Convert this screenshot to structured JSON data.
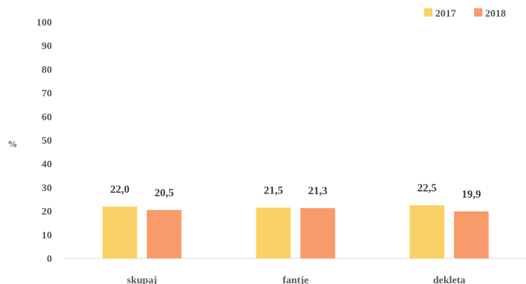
{
  "chart_data": {
    "type": "bar",
    "categories": [
      "skupaj",
      "fantje",
      "dekleta"
    ],
    "series": [
      {
        "name": "2017",
        "values": [
          22.0,
          21.5,
          22.5
        ],
        "labels": [
          "22,0",
          "21,5",
          "22,5"
        ],
        "color": "#FAD167"
      },
      {
        "name": "2018",
        "values": [
          20.5,
          21.3,
          19.9
        ],
        "labels": [
          "20,5",
          "21,3",
          "19,9"
        ],
        "color": "#F89A6A"
      }
    ],
    "yticks": [
      "0",
      "10",
      "20",
      "30",
      "40",
      "50",
      "60",
      "70",
      "80",
      "90",
      "100"
    ],
    "ylabel": "%",
    "ylim": [
      0,
      100
    ],
    "grid": false,
    "legend_position": "top-right"
  }
}
